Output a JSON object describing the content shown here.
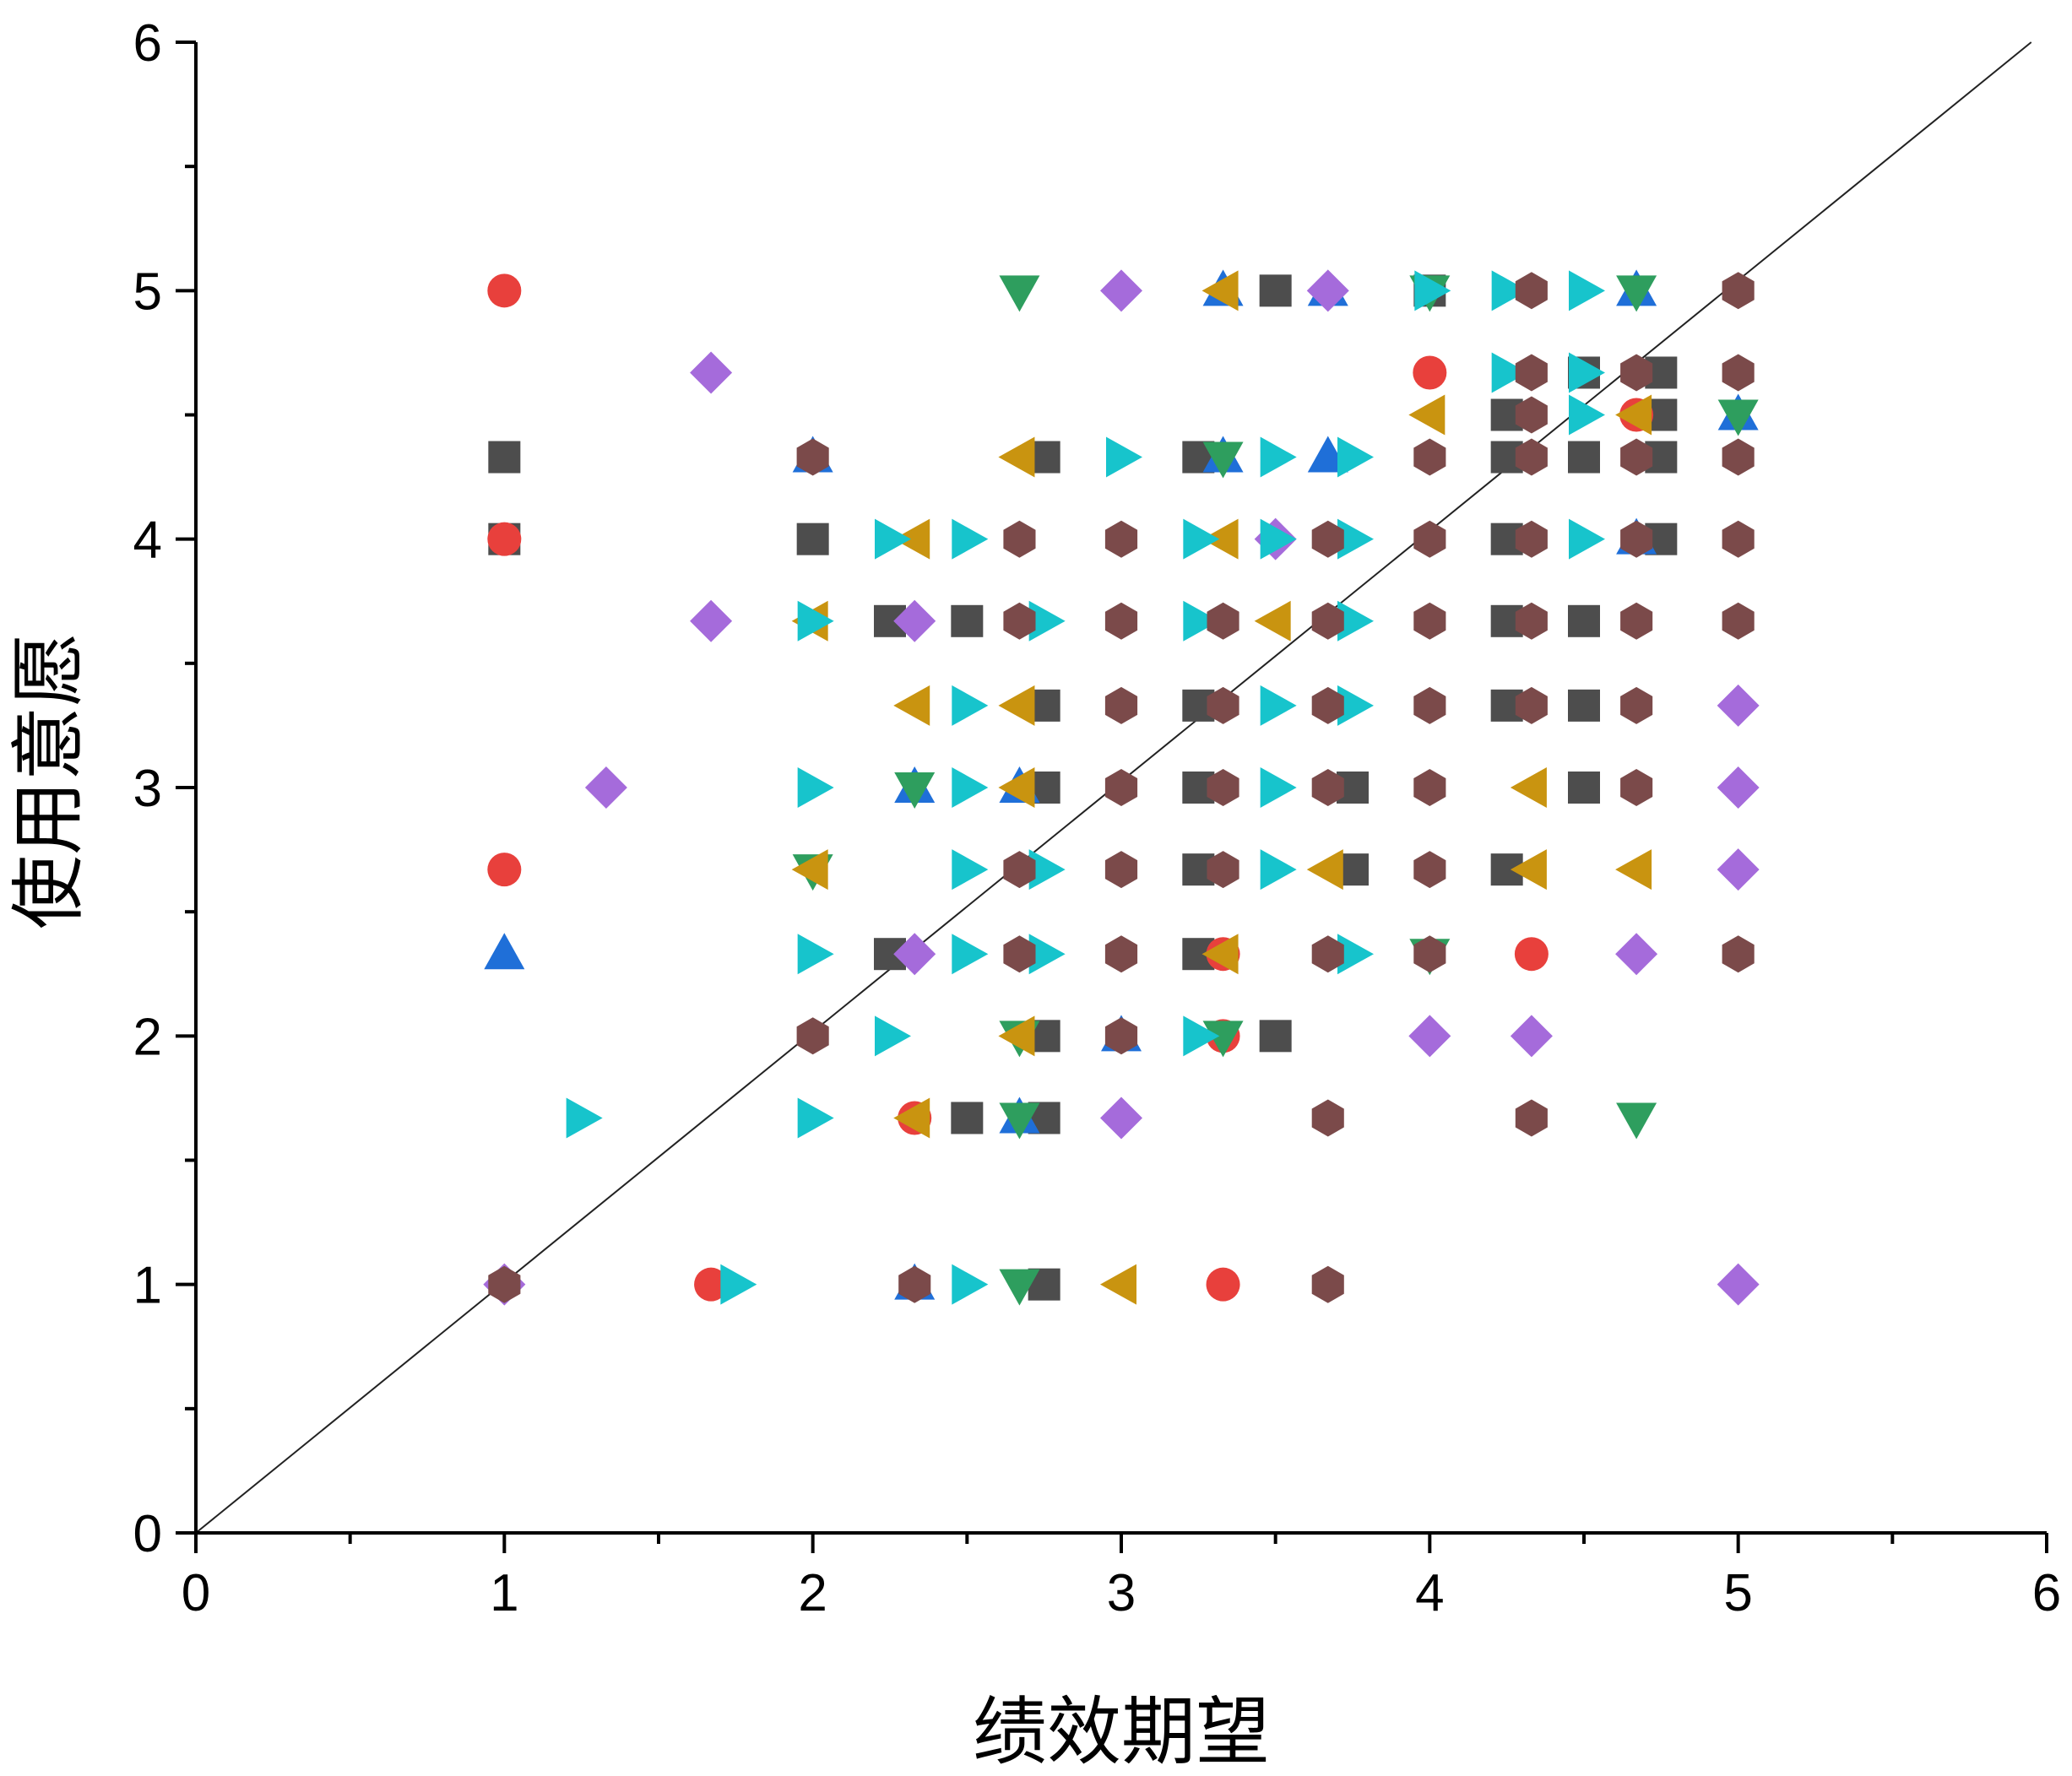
{
  "chart_data": {
    "type": "scatter",
    "xlabel": "绩效期望",
    "ylabel": "使用意愿",
    "xlim": [
      0,
      6
    ],
    "ylim": [
      0,
      6
    ],
    "x_ticks": [
      "0",
      "1",
      "2",
      "3",
      "4",
      "5",
      "6"
    ],
    "y_ticks": [
      "0",
      "1",
      "2",
      "3",
      "4",
      "5",
      "6"
    ],
    "grid": false,
    "legend": "none",
    "reference_line": {
      "from": [
        0,
        0
      ],
      "to": [
        5.95,
        6
      ]
    },
    "series": [
      {
        "marker": "square",
        "color": "#4d4d4d",
        "points": [
          [
            1,
            4.33
          ],
          [
            1,
            4
          ],
          [
            2,
            4
          ],
          [
            2.25,
            3.67
          ],
          [
            2.5,
            3.67
          ],
          [
            2.25,
            2.33
          ],
          [
            2.5,
            1.67
          ],
          [
            2.75,
            4.33
          ],
          [
            2.75,
            3.33
          ],
          [
            2.75,
            3
          ],
          [
            2.75,
            2
          ],
          [
            2.75,
            1.67
          ],
          [
            2.75,
            1
          ],
          [
            3.25,
            4.33
          ],
          [
            3.25,
            3.33
          ],
          [
            3.25,
            3
          ],
          [
            3.25,
            2.67
          ],
          [
            3.25,
            2.33
          ],
          [
            3.5,
            5
          ],
          [
            3.5,
            2
          ],
          [
            3.75,
            2.67
          ],
          [
            3.75,
            3
          ],
          [
            4,
            5
          ],
          [
            4.25,
            4.5
          ],
          [
            4.25,
            4.33
          ],
          [
            4.25,
            4
          ],
          [
            4.25,
            3.67
          ],
          [
            4.25,
            3.33
          ],
          [
            4.25,
            2.67
          ],
          [
            4.5,
            4.67
          ],
          [
            4.5,
            4.33
          ],
          [
            4.5,
            3.67
          ],
          [
            4.5,
            3.33
          ],
          [
            4.5,
            3
          ],
          [
            4.75,
            4.67
          ],
          [
            4.75,
            4.5
          ],
          [
            4.75,
            4.33
          ],
          [
            4.75,
            4
          ]
        ]
      },
      {
        "marker": "circle",
        "color": "#e8403c",
        "points": [
          [
            1,
            5
          ],
          [
            1,
            4
          ],
          [
            1,
            2.67
          ],
          [
            1.67,
            1
          ],
          [
            2.33,
            1.67
          ],
          [
            3.33,
            2.33
          ],
          [
            3.33,
            2
          ],
          [
            3.33,
            1
          ],
          [
            4,
            4.67
          ],
          [
            4.33,
            2.33
          ],
          [
            4.67,
            4.5
          ]
        ]
      },
      {
        "marker": "triangle-up",
        "color": "#1f6fd8",
        "points": [
          [
            1,
            2.33
          ],
          [
            2,
            4.33
          ],
          [
            2.33,
            3
          ],
          [
            2.33,
            1
          ],
          [
            2.67,
            3
          ],
          [
            2.67,
            1.67
          ],
          [
            3,
            2
          ],
          [
            3.33,
            5
          ],
          [
            3.33,
            4.33
          ],
          [
            3.67,
            5
          ],
          [
            3.67,
            4.33
          ],
          [
            4.67,
            5
          ],
          [
            4.67,
            4
          ],
          [
            5,
            4.5
          ]
        ]
      },
      {
        "marker": "triangle-down",
        "color": "#2e9e5e",
        "points": [
          [
            2,
            2.67
          ],
          [
            2.33,
            3
          ],
          [
            2.67,
            5
          ],
          [
            2.67,
            2
          ],
          [
            2.67,
            1.67
          ],
          [
            2.67,
            1
          ],
          [
            3.33,
            4.33
          ],
          [
            3.33,
            2
          ],
          [
            4,
            5
          ],
          [
            4,
            2.33
          ],
          [
            4.67,
            5
          ],
          [
            4.67,
            1.67
          ],
          [
            5,
            4.5
          ]
        ]
      },
      {
        "marker": "diamond",
        "color": "#a56bdb",
        "points": [
          [
            1,
            1
          ],
          [
            1.33,
            3
          ],
          [
            1.67,
            4.67
          ],
          [
            1.67,
            3.67
          ],
          [
            2.33,
            3.67
          ],
          [
            2.33,
            2.33
          ],
          [
            3,
            5
          ],
          [
            3,
            1.67
          ],
          [
            3.5,
            4
          ],
          [
            3.67,
            5
          ],
          [
            4,
            2
          ],
          [
            4.33,
            2
          ],
          [
            4.67,
            2.33
          ],
          [
            5,
            3.33
          ],
          [
            5,
            3
          ],
          [
            5,
            2.67
          ],
          [
            5,
            1
          ]
        ]
      },
      {
        "marker": "triangle-left",
        "color": "#c99410",
        "points": [
          [
            2,
            3.67
          ],
          [
            2,
            2.67
          ],
          [
            2.33,
            4
          ],
          [
            2.33,
            3.33
          ],
          [
            2.33,
            1.67
          ],
          [
            2.67,
            4.33
          ],
          [
            2.67,
            3.33
          ],
          [
            2.67,
            3
          ],
          [
            2.67,
            2
          ],
          [
            3,
            1
          ],
          [
            3.33,
            5
          ],
          [
            3.33,
            4
          ],
          [
            3.33,
            2.33
          ],
          [
            3.5,
            3.67
          ],
          [
            3.67,
            2.67
          ],
          [
            4,
            4.5
          ],
          [
            4.33,
            3
          ],
          [
            4.33,
            2.67
          ],
          [
            4.67,
            2.67
          ],
          [
            4.67,
            4.5
          ]
        ]
      },
      {
        "marker": "triangle-right",
        "color": "#17c4cc",
        "points": [
          [
            1.25,
            1.67
          ],
          [
            1.75,
            1
          ],
          [
            2,
            3.67
          ],
          [
            2,
            3
          ],
          [
            2,
            2.33
          ],
          [
            2,
            1.67
          ],
          [
            2.25,
            4
          ],
          [
            2.25,
            2
          ],
          [
            2.5,
            4
          ],
          [
            2.5,
            3.33
          ],
          [
            2.5,
            3
          ],
          [
            2.5,
            2.67
          ],
          [
            2.5,
            2.33
          ],
          [
            2.5,
            1
          ],
          [
            2.75,
            3.67
          ],
          [
            2.75,
            2.67
          ],
          [
            2.75,
            2.33
          ],
          [
            3,
            4.33
          ],
          [
            3.25,
            4
          ],
          [
            3.25,
            3.67
          ],
          [
            3.25,
            2
          ],
          [
            3.5,
            4.33
          ],
          [
            3.5,
            4
          ],
          [
            3.5,
            3.33
          ],
          [
            3.5,
            3
          ],
          [
            3.5,
            2.67
          ],
          [
            3.75,
            4.33
          ],
          [
            3.75,
            4
          ],
          [
            3.75,
            3.67
          ],
          [
            3.75,
            3.33
          ],
          [
            3.75,
            2.33
          ],
          [
            4,
            5
          ],
          [
            4.25,
            5
          ],
          [
            4.25,
            4.67
          ],
          [
            4.5,
            5
          ],
          [
            4.5,
            4.67
          ],
          [
            4.5,
            4.5
          ],
          [
            4.5,
            4
          ]
        ]
      },
      {
        "marker": "hexagon",
        "color": "#7b4a4a",
        "points": [
          [
            1,
            1
          ],
          [
            2,
            4.33
          ],
          [
            2,
            2
          ],
          [
            2.33,
            1
          ],
          [
            2.67,
            4
          ],
          [
            2.67,
            3.67
          ],
          [
            2.67,
            2.67
          ],
          [
            2.67,
            2.33
          ],
          [
            3,
            4
          ],
          [
            3,
            3.67
          ],
          [
            3,
            3.33
          ],
          [
            3,
            3
          ],
          [
            3,
            2.67
          ],
          [
            3,
            2.33
          ],
          [
            3,
            2
          ],
          [
            3.33,
            3.67
          ],
          [
            3.33,
            3.33
          ],
          [
            3.33,
            3
          ],
          [
            3.33,
            2.67
          ],
          [
            3.67,
            4
          ],
          [
            3.67,
            3.67
          ],
          [
            3.67,
            3.33
          ],
          [
            3.67,
            3
          ],
          [
            3.67,
            2.33
          ],
          [
            3.67,
            1.67
          ],
          [
            3.67,
            1
          ],
          [
            4,
            4.33
          ],
          [
            4,
            4
          ],
          [
            4,
            3.67
          ],
          [
            4,
            3.33
          ],
          [
            4,
            3
          ],
          [
            4,
            2.67
          ],
          [
            4,
            2.33
          ],
          [
            4.33,
            5
          ],
          [
            4.33,
            4.67
          ],
          [
            4.33,
            4.5
          ],
          [
            4.33,
            4.33
          ],
          [
            4.33,
            4
          ],
          [
            4.33,
            3.67
          ],
          [
            4.33,
            3.33
          ],
          [
            4.33,
            1.67
          ],
          [
            4.67,
            4.67
          ],
          [
            4.67,
            4.33
          ],
          [
            4.67,
            4
          ],
          [
            4.67,
            3.67
          ],
          [
            4.67,
            3.33
          ],
          [
            4.67,
            3
          ],
          [
            5,
            5
          ],
          [
            5,
            4.67
          ],
          [
            5,
            4.33
          ],
          [
            5,
            4
          ],
          [
            5,
            3.67
          ],
          [
            5,
            2.33
          ]
        ]
      }
    ]
  }
}
